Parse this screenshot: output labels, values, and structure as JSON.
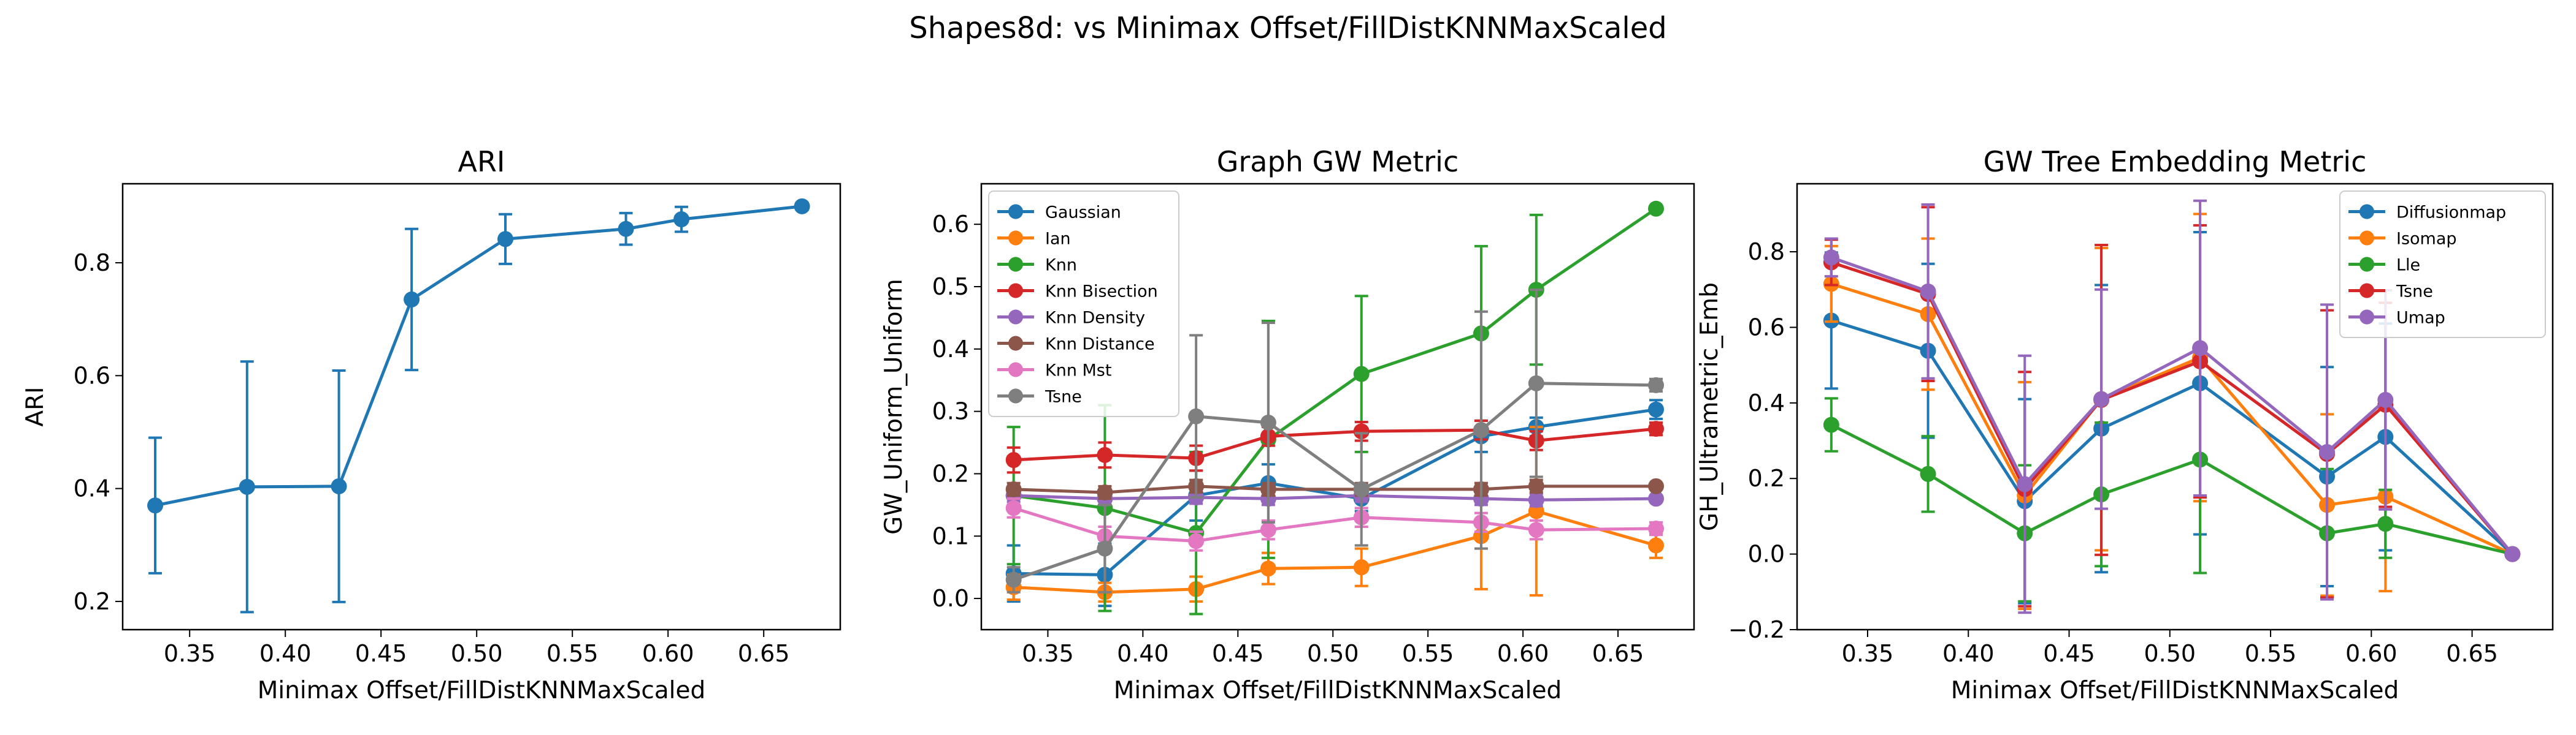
{
  "figure_title": "Shapes8d: vs Minimax Offset/FillDistKNNMaxScaled",
  "chart_data": [
    {
      "type": "line",
      "title": "ARI",
      "xlabel": "Minimax Offset/FillDistKNNMaxScaled",
      "ylabel": "ARI",
      "xlim": [
        0.315,
        0.69
      ],
      "ylim": [
        0.15,
        0.94
      ],
      "xticks": [
        0.35,
        0.4,
        0.45,
        0.5,
        0.55,
        0.6,
        0.65
      ],
      "xtick_labels": [
        "0.35",
        "0.40",
        "0.45",
        "0.50",
        "0.55",
        "0.60",
        "0.65"
      ],
      "yticks": [
        0.2,
        0.4,
        0.6,
        0.8
      ],
      "ytick_labels": [
        "0.2",
        "0.4",
        "0.6",
        "0.8"
      ],
      "legend": false,
      "x": [
        0.332,
        0.38,
        0.428,
        0.466,
        0.515,
        0.578,
        0.607,
        0.67
      ],
      "series": [
        {
          "color": "#1f77b4",
          "values": [
            0.37,
            0.403,
            0.404,
            0.735,
            0.842,
            0.86,
            0.877,
            0.9
          ],
          "errors": [
            0.12,
            0.222,
            0.205,
            0.125,
            0.044,
            0.028,
            0.022,
            0.006
          ]
        }
      ]
    },
    {
      "type": "line",
      "title": "Graph GW Metric",
      "xlabel": "Minimax Offset/FillDistKNNMaxScaled",
      "ylabel": "GW_Uniform_Uniform",
      "xlim": [
        0.315,
        0.69
      ],
      "ylim": [
        -0.05,
        0.665
      ],
      "xticks": [
        0.35,
        0.4,
        0.45,
        0.5,
        0.55,
        0.6,
        0.65
      ],
      "xtick_labels": [
        "0.35",
        "0.40",
        "0.45",
        "0.50",
        "0.55",
        "0.60",
        "0.65"
      ],
      "yticks": [
        0.0,
        0.1,
        0.2,
        0.3,
        0.4,
        0.5,
        0.6
      ],
      "ytick_labels": [
        "0.0",
        "0.1",
        "0.2",
        "0.3",
        "0.4",
        "0.5",
        "0.6"
      ],
      "legend": "top-left",
      "x": [
        0.332,
        0.38,
        0.428,
        0.466,
        0.515,
        0.578,
        0.607,
        0.67
      ],
      "series": [
        {
          "name": "Gaussian",
          "color": "#1f77b4",
          "values": [
            0.04,
            0.038,
            0.165,
            0.185,
            0.16,
            0.26,
            0.275,
            0.303
          ],
          "errors": [
            0.045,
            0.05,
            0.04,
            0.03,
            0.02,
            0.025,
            0.015,
            0.015
          ]
        },
        {
          "name": "Ian",
          "color": "#ff7f0e",
          "values": [
            0.018,
            0.01,
            0.015,
            0.048,
            0.05,
            0.1,
            0.14,
            0.085
          ],
          "errors": [
            0.02,
            0.015,
            0.02,
            0.025,
            0.03,
            0.085,
            0.135,
            0.02
          ]
        },
        {
          "name": "Knn",
          "color": "#2ca02c",
          "values": [
            0.165,
            0.145,
            0.105,
            0.255,
            0.36,
            0.425,
            0.495,
            0.625
          ],
          "errors": [
            0.11,
            0.165,
            0.13,
            0.19,
            0.125,
            0.14,
            0.12,
            0.005
          ]
        },
        {
          "name": "Knn Bisection",
          "color": "#d62728",
          "values": [
            0.222,
            0.23,
            0.225,
            0.26,
            0.268,
            0.27,
            0.253,
            0.272
          ],
          "errors": [
            0.02,
            0.02,
            0.02,
            0.015,
            0.015,
            0.015,
            0.015,
            0.01
          ]
        },
        {
          "name": "Knn Density",
          "color": "#9467bd",
          "values": [
            0.165,
            0.16,
            0.162,
            0.16,
            0.165,
            0.16,
            0.158,
            0.16
          ],
          "errors": [
            0.01,
            0.01,
            0.01,
            0.01,
            0.01,
            0.01,
            0.01,
            0.005
          ]
        },
        {
          "name": "Knn Distance",
          "color": "#8c564b",
          "values": [
            0.175,
            0.17,
            0.18,
            0.175,
            0.175,
            0.175,
            0.18,
            0.18
          ],
          "errors": [
            0.01,
            0.01,
            0.01,
            0.01,
            0.01,
            0.01,
            0.01,
            0.005
          ]
        },
        {
          "name": "Knn Mst",
          "color": "#e377c2",
          "values": [
            0.145,
            0.1,
            0.092,
            0.11,
            0.13,
            0.122,
            0.11,
            0.112
          ],
          "errors": [
            0.015,
            0.015,
            0.015,
            0.015,
            0.015,
            0.015,
            0.015,
            0.01
          ]
        },
        {
          "name": "Tsne",
          "color": "#7f7f7f",
          "values": [
            0.03,
            0.08,
            0.292,
            0.282,
            0.175,
            0.27,
            0.345,
            0.342
          ],
          "errors": [
            0.02,
            0.07,
            0.13,
            0.16,
            0.09,
            0.19,
            0.15,
            0.01
          ]
        }
      ]
    },
    {
      "type": "line",
      "title": "GW Tree Embedding Metric",
      "xlabel": "Minimax Offset/FillDistKNNMaxScaled",
      "ylabel": "GH_Ultrametric_Emb",
      "xlim": [
        0.315,
        0.69
      ],
      "ylim": [
        -0.2,
        0.98
      ],
      "xticks": [
        0.35,
        0.4,
        0.45,
        0.5,
        0.55,
        0.6,
        0.65
      ],
      "xtick_labels": [
        "0.35",
        "0.40",
        "0.45",
        "0.50",
        "0.55",
        "0.60",
        "0.65"
      ],
      "yticks": [
        -0.2,
        0.0,
        0.2,
        0.4,
        0.6,
        0.8
      ],
      "ytick_labels": [
        "−0.2",
        "0.0",
        "0.2",
        "0.4",
        "0.6",
        "0.8"
      ],
      "legend": "top-right",
      "x": [
        0.332,
        0.38,
        0.428,
        0.466,
        0.515,
        0.578,
        0.607,
        0.67
      ],
      "series": [
        {
          "name": "Diffusionmap",
          "color": "#1f77b4",
          "values": [
            0.618,
            0.538,
            0.14,
            0.332,
            0.452,
            0.205,
            0.31,
            0.0
          ],
          "errors": [
            0.18,
            0.23,
            0.27,
            0.38,
            0.4,
            0.29,
            0.3,
            0.005
          ]
        },
        {
          "name": "Isomap",
          "color": "#ff7f0e",
          "values": [
            0.715,
            0.635,
            0.155,
            0.41,
            0.52,
            0.13,
            0.152,
            0.0
          ],
          "errors": [
            0.1,
            0.2,
            0.3,
            0.4,
            0.38,
            0.24,
            0.25,
            0.005
          ]
        },
        {
          "name": "Lle",
          "color": "#2ca02c",
          "values": [
            0.342,
            0.212,
            0.055,
            0.158,
            0.25,
            0.055,
            0.08,
            0.0
          ],
          "errors": [
            0.07,
            0.1,
            0.18,
            0.19,
            0.3,
            0.17,
            0.09,
            0.005
          ]
        },
        {
          "name": "Tsne",
          "color": "#d62728",
          "values": [
            0.772,
            0.688,
            0.172,
            0.408,
            0.51,
            0.265,
            0.395,
            0.0
          ],
          "errors": [
            0.06,
            0.23,
            0.31,
            0.41,
            0.36,
            0.38,
            0.27,
            0.005
          ]
        },
        {
          "name": "Umap",
          "color": "#9467bd",
          "values": [
            0.785,
            0.695,
            0.185,
            0.41,
            0.545,
            0.27,
            0.408,
            0.0
          ],
          "errors": [
            0.05,
            0.23,
            0.34,
            0.29,
            0.39,
            0.39,
            0.29,
            0.005
          ]
        }
      ]
    }
  ]
}
